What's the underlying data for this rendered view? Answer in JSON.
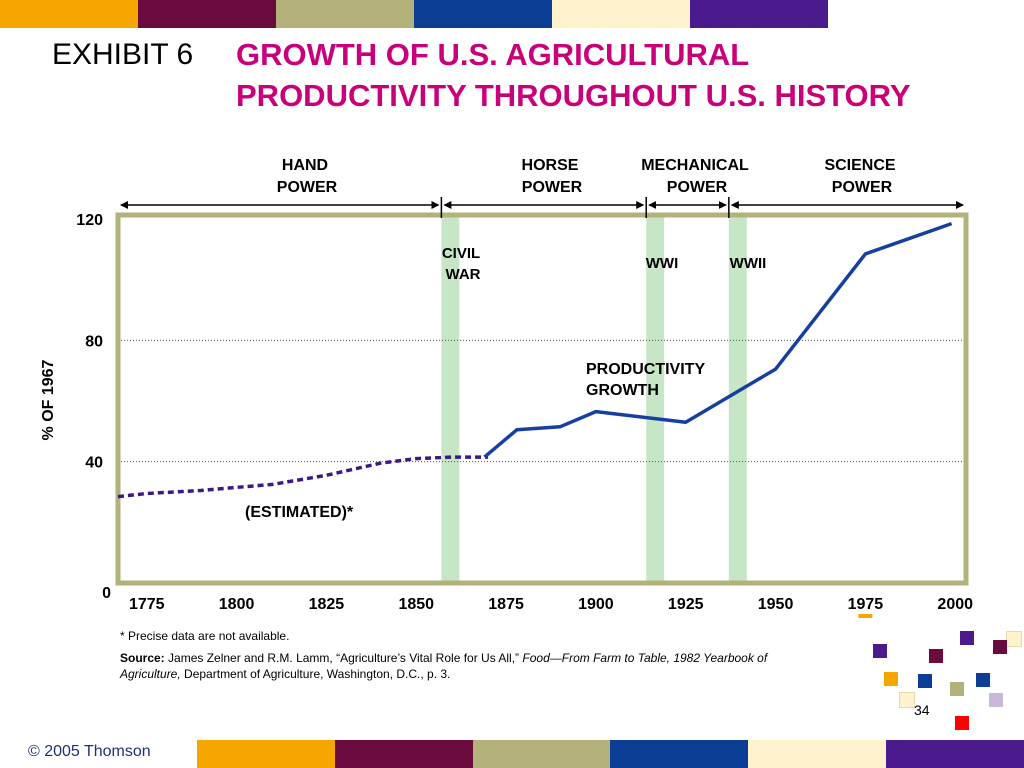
{
  "header": {
    "exhibit": "EXHIBIT 6",
    "title_line1": "GROWTH OF U.S. AGRICULTURAL",
    "title_line2": "PRODUCTIVITY THROUGHOUT U.S. HISTORY"
  },
  "palette": [
    "#f5a700",
    "#6b0a3c",
    "#b2b27a",
    "#0b3e94",
    "#fff2cc",
    "#4b1a8c"
  ],
  "chart_data": {
    "type": "line",
    "ylabel": "% OF 1967",
    "xlim": [
      1767,
      2003
    ],
    "ylim": [
      0,
      120
    ],
    "yticks": [
      0,
      40,
      80,
      120
    ],
    "xticks": [
      1775,
      1800,
      1825,
      1850,
      1875,
      1900,
      1925,
      1950,
      1975,
      2000
    ],
    "grid": "horizontal dotted at 40 and 80",
    "series": [
      {
        "name": "(ESTIMATED)*",
        "style": "dashed",
        "color": "#3b1a85",
        "x": [
          1767,
          1775,
          1790,
          1800,
          1810,
          1825,
          1840,
          1850,
          1860,
          1870
        ],
        "y": [
          28.5,
          29.5,
          30.5,
          31.5,
          32.5,
          35.5,
          39.5,
          41,
          41.5,
          41.5
        ]
      },
      {
        "name": "PRODUCTIVITY GROWTH",
        "style": "solid",
        "color": "#1540a0",
        "x": [
          1869,
          1878,
          1890,
          1900,
          1925,
          1950,
          1975,
          1999
        ],
        "y": [
          41.5,
          50.5,
          51.5,
          56.5,
          53,
          70.5,
          108.5,
          118.5
        ]
      }
    ],
    "eras": [
      {
        "label": "HAND POWER",
        "start": 1767,
        "end": 1857
      },
      {
        "label": "HORSE POWER",
        "start": 1857,
        "end": 1914
      },
      {
        "label": "MECHANICAL POWER",
        "start": 1914,
        "end": 1937
      },
      {
        "label": "SCIENCE POWER",
        "start": 1937,
        "end": 2003
      }
    ],
    "bands": [
      {
        "label": "CIVIL WAR",
        "start": 1857,
        "end": 1862
      },
      {
        "label": "WWI",
        "start": 1914,
        "end": 1919
      },
      {
        "label": "WWII",
        "start": 1937,
        "end": 1942
      }
    ]
  },
  "footnote": "* Precise data are not available.",
  "source": {
    "label": "Source:",
    "text": "James Zelner and R.M. Lamm, “Agriculture’s Vital Role for Us All,”",
    "publication": "Food—From Farm to Table, 1982 Yearbook of Agriculture,",
    "rest": "Department of Agriculture, Washington, D.C., p. 3."
  },
  "footer": {
    "copyright": "© 2005 Thomson",
    "page": "34"
  }
}
